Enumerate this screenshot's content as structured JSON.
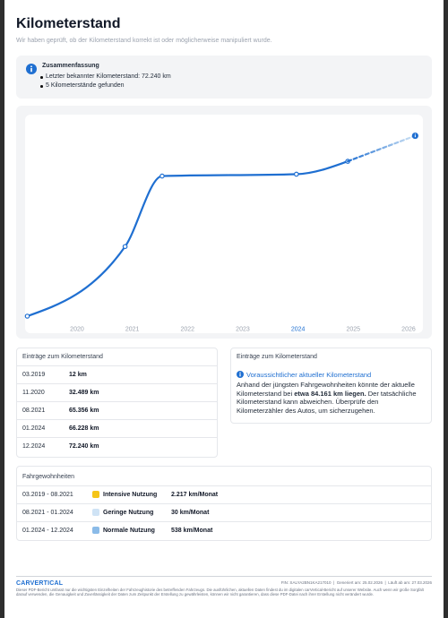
{
  "header": {
    "title": "Kilometerstand",
    "subtitle": "Wir haben geprüft, ob der Kilometerstand korrekt ist oder möglicherweise manipuliert wurde."
  },
  "summary": {
    "title": "Zusammenfassung",
    "items": [
      "Letzter bekannter Kilometerstand: 72.240 km",
      "5 Kilometerstände gefunden"
    ]
  },
  "chart_data": {
    "type": "line",
    "xlim": [
      2019.06,
      2026.26
    ],
    "ylim": [
      -5000,
      94000
    ],
    "xticks": [
      2020,
      2021,
      2022,
      2023,
      2024,
      2025,
      2026
    ],
    "highlight_xtick": 2024,
    "series": [
      {
        "color": "#1f6fd1",
        "dashed": false,
        "x": [
          2019.1,
          2020.87,
          2021.54,
          2023.97,
          2024.9
        ],
        "values": [
          12,
          32489,
          65356,
          66228,
          72240
        ]
      },
      {
        "color": "#8fbcec",
        "dashed": true,
        "x": [
          2024.9,
          2026.12
        ],
        "values": [
          72240,
          84161
        ]
      }
    ]
  },
  "entries": {
    "title": "Einträge zum Kilometerstand",
    "rows": [
      [
        "03.2019",
        "12 km"
      ],
      [
        "11.2020",
        "32.489 km"
      ],
      [
        "08.2021",
        "65.356 km"
      ],
      [
        "01.2024",
        "66.228 km"
      ],
      [
        "12.2024",
        "72.240 km"
      ]
    ]
  },
  "forecast": {
    "title": "Einträge zum Kilometerstand",
    "link": "Voraussichtlicher aktueller Kilometerstand",
    "text_before": "Anhand der jüngsten Fahrgewohnheiten könnte der aktuelle Kilometerstand bei ",
    "text_bold": "etwa 84.161 km liegen.",
    "text_after": " Der tatsächliche Kilometerstand kann abweichen. Überprüfe den Kilometerzähler des Autos, um sicherzugehen."
  },
  "habits": {
    "title": "Fahrgewohnheiten",
    "rows": [
      {
        "period": "03.2019 - 08.2021",
        "color": "#f5c518",
        "label": "Intensive Nutzung",
        "rate": "2.217 km/Monat"
      },
      {
        "period": "08.2021 - 01.2024",
        "color": "#cfe3f5",
        "label": "Geringe Nutzung",
        "rate": "30 km/Monat"
      },
      {
        "period": "01.2024 - 12.2024",
        "color": "#8bbbe8",
        "label": "Normale Nutzung",
        "rate": "538 km/Monat"
      }
    ]
  },
  "footer": {
    "logo": "CARVERTICAL",
    "vin": "FIN: SALYA2BN1KA217010",
    "generated": "Generiert am: 25.02.2026",
    "expires": "Läuft ab am: 27.03.2026",
    "disclaimer": "Dieser PDF-Bericht umfasst nur die wichtigsten Einzelheiten der Fahrzeughistorie des betreffenden Fahrzeugs. Die ausführlichen, aktuellen Daten findest du im digitalen carVertical-Bericht auf unserer Website. Auch wenn wir große Sorgfalt darauf verwenden, die Genauigkeit und Zuverlässigkeit der Daten zum Zeitpunkt der Erstellung zu gewährleisten, können wir nicht garantieren, dass diese PDF-Datei nach ihrer Erstellung nicht verändert wurde."
  }
}
